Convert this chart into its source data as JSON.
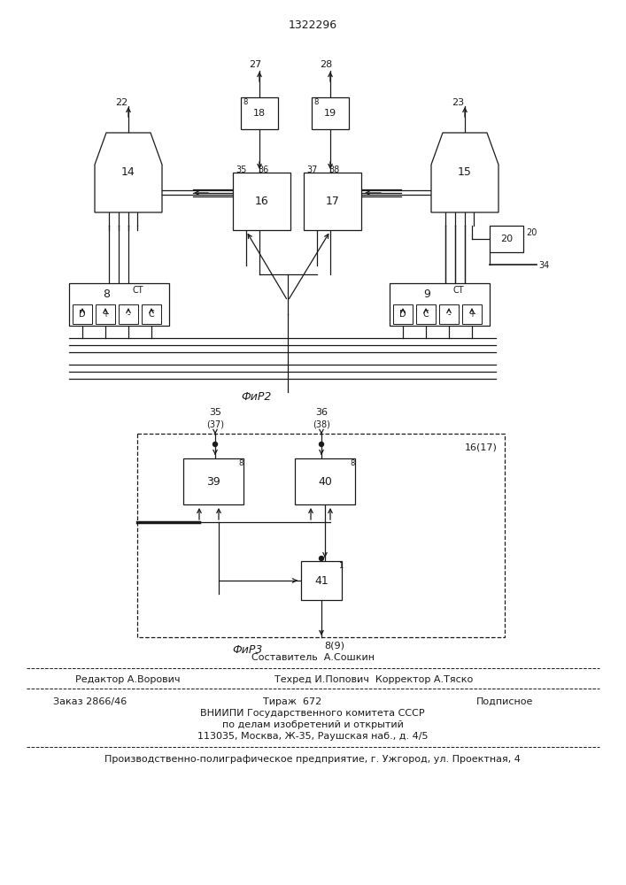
{
  "title": "1322296",
  "fig2_label": "ФиР2",
  "fig3_label": "ФиР3",
  "footer_sestavitel": "Составитель  А.Сошкин",
  "footer_redaktor": "Редактор А.Ворович",
  "footer_tehred": "Техред И.Попович  Корректор А.Тяско",
  "footer_zakaz": "Заказ 2866/46",
  "footer_tirazh": "Тираж  672",
  "footer_podpisnoe": "Подписное",
  "footer_vniip1": "ВНИИПИ Государственного комитета СССР",
  "footer_vniip2": "по делам изобретений и открытий",
  "footer_addr": "113035, Москва, Ж-35, Раушская наб., д. 4/5",
  "footer_prod": "Производственно-полиграфическое предприятие, г. Ужгород, ул. Проектная, 4",
  "bg_color": "#ffffff",
  "lc": "#1a1a1a"
}
